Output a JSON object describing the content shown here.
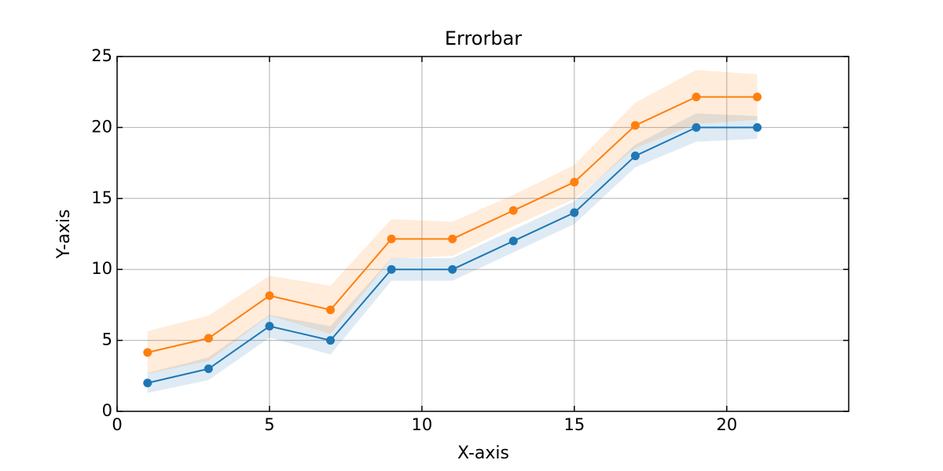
{
  "chart_data": {
    "type": "line",
    "title": "Errorbar",
    "x_label": "X-axis",
    "y_label": "Y-axis",
    "x": [
      1,
      3,
      5,
      7,
      9,
      11,
      13,
      15,
      17,
      19,
      21
    ],
    "series": [
      {
        "color": "#1f77b4",
        "values": [
          2,
          3,
          6,
          5,
          10,
          10,
          12,
          14,
          18,
          20,
          20
        ],
        "errors": [
          0.7,
          0.8,
          0.8,
          1.0,
          0.8,
          0.8,
          0.8,
          0.8,
          0.8,
          1.0,
          0.8
        ]
      },
      {
        "color": "#ff7f0e",
        "values": [
          4.15,
          5.15,
          8.15,
          7.15,
          12.15,
          12.15,
          14.15,
          16.15,
          20.15,
          22.15,
          22.15
        ],
        "errors": [
          1.5,
          1.6,
          1.4,
          1.7,
          1.4,
          1.2,
          1.1,
          1.2,
          1.6,
          1.9,
          1.6
        ]
      }
    ],
    "xlim": [
      0,
      24
    ],
    "xticks": [
      0,
      5,
      10,
      15,
      20
    ],
    "ylim": [
      0,
      25
    ],
    "yticks": [
      0,
      5,
      10,
      15,
      20,
      25
    ],
    "grid": true
  }
}
